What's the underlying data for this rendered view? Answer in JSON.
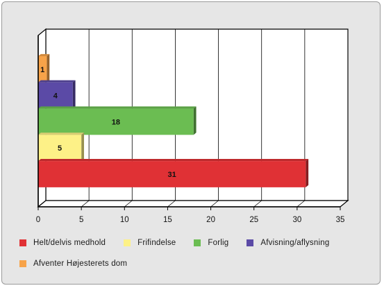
{
  "chart_data": {
    "type": "bar",
    "orientation": "horizontal",
    "categories": [
      "Afventer Højesterets dom",
      "Afvisning/aflysning",
      "Forlig",
      "Frifindelse",
      "Helt/delvis medhold"
    ],
    "values": [
      1,
      4,
      18,
      5,
      31
    ],
    "colors": [
      "#f7a349",
      "#5b4aa6",
      "#6bbd52",
      "#fdf187",
      "#e03135"
    ],
    "xlim": [
      0,
      35
    ],
    "xticks": [
      0,
      5,
      10,
      15,
      20,
      25,
      30,
      35
    ],
    "grid": true,
    "legend_position": "bottom",
    "data_labels": true
  },
  "legend": [
    {
      "label": "Helt/delvis medhold",
      "color": "#e03135"
    },
    {
      "label": "Frifindelse",
      "color": "#fdf187"
    },
    {
      "label": "Forlig",
      "color": "#6bbd52"
    },
    {
      "label": "Afvisning/aflysning",
      "color": "#5b4aa6"
    },
    {
      "label": "Afventer Højesterets dom",
      "color": "#f7a349"
    }
  ]
}
